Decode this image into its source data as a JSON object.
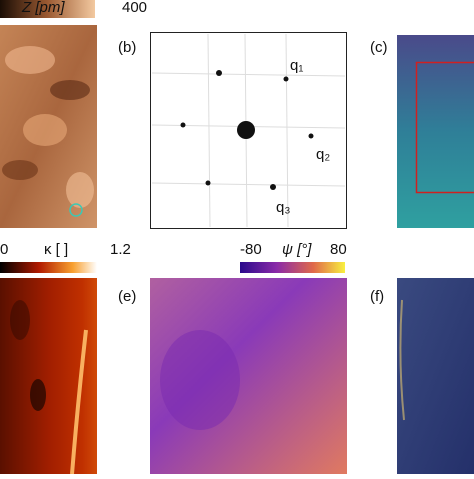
{
  "panels": [
    {
      "colorbar": {
        "min_label": "",
        "label": "Z [pm]",
        "max_label": "400"
      }
    },
    {
      "label": "(b)",
      "annotations": [
        "q₁",
        "q₂",
        "q₃"
      ]
    },
    {
      "label": "(c)"
    },
    {
      "colorbar": {
        "min_label": "0",
        "label": "κ [ ]",
        "max_label": "1.2"
      }
    },
    {
      "label": "(e)",
      "colorbar": {
        "min_label": "-80",
        "label": "ψ [°]",
        "max_label": "80"
      }
    },
    {
      "label": "(f)"
    }
  ]
}
